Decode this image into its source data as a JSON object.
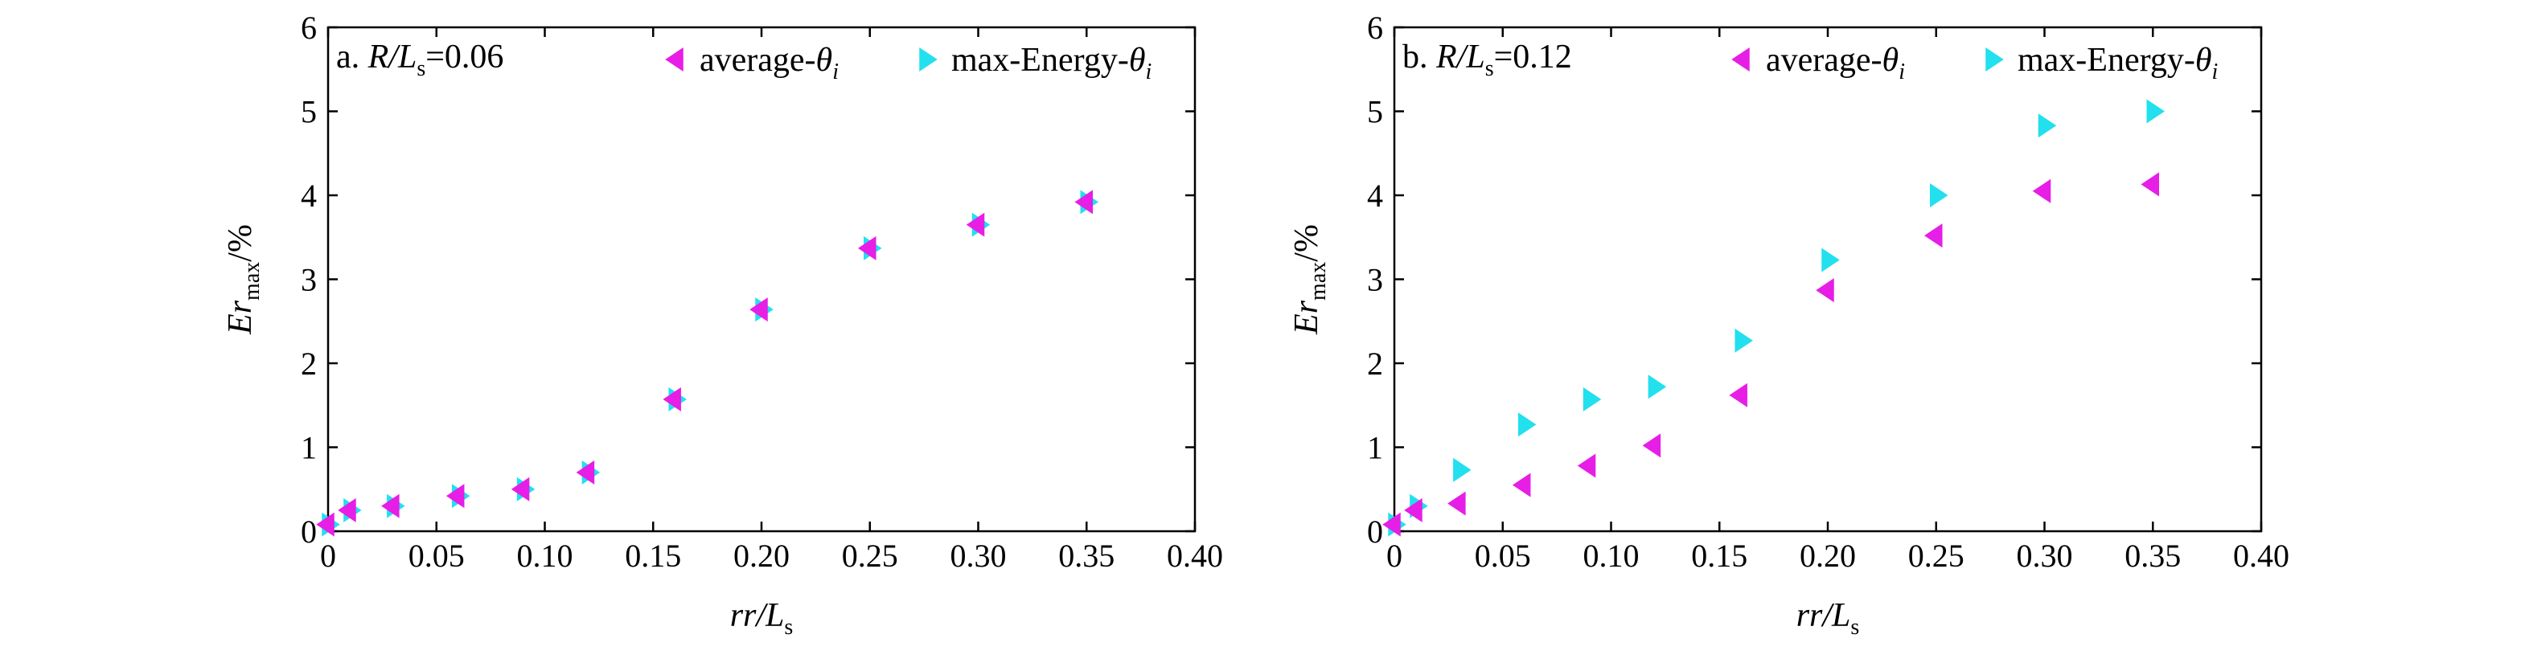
{
  "figure": {
    "panels": [
      {
        "label_prefix": "a. ",
        "ratio_value": "=0.06"
      },
      {
        "label_prefix": "b. ",
        "ratio_value": "=0.12"
      }
    ],
    "ylabel": {
      "main": "Er",
      "sub": "max",
      "tail": "/%"
    },
    "xlabel": {
      "main": "rr/L",
      "sub": "s"
    },
    "panel_ratio": {
      "main": "R/L",
      "sub": "s"
    },
    "legend": [
      {
        "text": "average-",
        "symbol": "θ",
        "sub": "i",
        "color": "#e61ee6",
        "marker": "triangle-left"
      },
      {
        "text": "max-Energy-",
        "symbol": "θ",
        "sub": "i",
        "color": "#22e0ee",
        "marker": "triangle-right"
      }
    ]
  },
  "chart_data": [
    {
      "type": "scatter",
      "title": "a. R/Ls=0.06",
      "xlabel": "rr/Ls",
      "ylabel": "Ermax/%",
      "xlim": [
        0,
        0.4
      ],
      "ylim": [
        0,
        6
      ],
      "x_ticks": [
        "0",
        "0.05",
        "0.10",
        "0.15",
        "0.20",
        "0.25",
        "0.30",
        "0.35",
        "0.40"
      ],
      "y_ticks": [
        "0",
        "1",
        "2",
        "3",
        "4",
        "5",
        "6"
      ],
      "grid": false,
      "legend_position": "top-right",
      "series": [
        {
          "name": "average-θi",
          "x": [
            0,
            0.01,
            0.03,
            0.06,
            0.09,
            0.12,
            0.16,
            0.2,
            0.25,
            0.3,
            0.35
          ],
          "values": [
            0.08,
            0.25,
            0.3,
            0.42,
            0.5,
            0.7,
            1.57,
            2.64,
            3.37,
            3.65,
            3.92
          ]
        },
        {
          "name": "max-Energy-θi",
          "x": [
            0,
            0.01,
            0.03,
            0.06,
            0.09,
            0.12,
            0.16,
            0.2,
            0.25,
            0.3,
            0.35
          ],
          "values": [
            0.08,
            0.25,
            0.3,
            0.42,
            0.5,
            0.7,
            1.57,
            2.64,
            3.37,
            3.65,
            3.92
          ]
        }
      ]
    },
    {
      "type": "scatter",
      "title": "b. R/Ls=0.12",
      "xlabel": "rr/Ls",
      "ylabel": "Ermax/%",
      "xlim": [
        0,
        0.4
      ],
      "ylim": [
        0,
        6
      ],
      "x_ticks": [
        "0",
        "0.05",
        "0.10",
        "0.15",
        "0.20",
        "0.25",
        "0.30",
        "0.35",
        "0.40"
      ],
      "y_ticks": [
        "0",
        "1",
        "2",
        "3",
        "4",
        "5",
        "6"
      ],
      "grid": false,
      "legend_position": "top-right",
      "series": [
        {
          "name": "average-θi",
          "x": [
            0,
            0.01,
            0.03,
            0.06,
            0.09,
            0.12,
            0.16,
            0.2,
            0.25,
            0.3,
            0.35
          ],
          "values": [
            0.08,
            0.25,
            0.33,
            0.55,
            0.78,
            1.02,
            1.62,
            2.87,
            3.52,
            4.05,
            4.13
          ]
        },
        {
          "name": "max-Energy-θi",
          "x": [
            0,
            0.01,
            0.03,
            0.06,
            0.09,
            0.12,
            0.16,
            0.2,
            0.25,
            0.3,
            0.35
          ],
          "values": [
            0.08,
            0.3,
            0.73,
            1.27,
            1.57,
            1.72,
            2.27,
            3.23,
            4.0,
            4.83,
            5.0
          ]
        }
      ]
    }
  ]
}
